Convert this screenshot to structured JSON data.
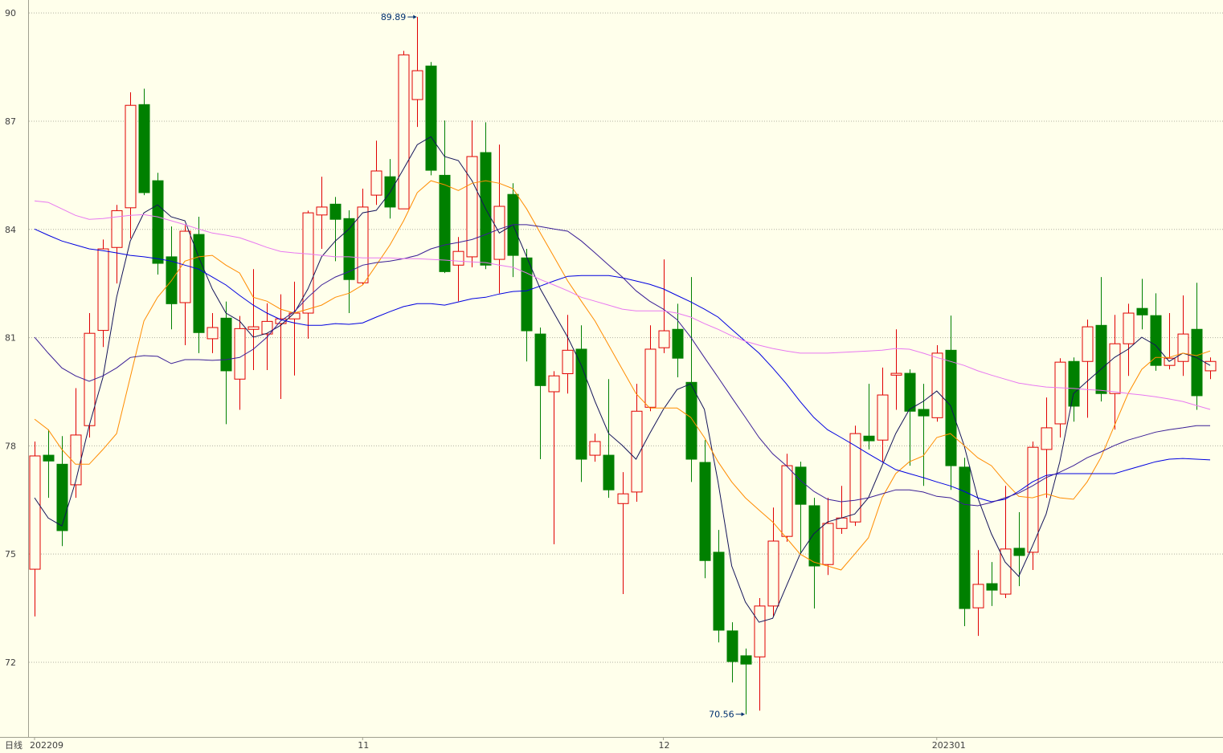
{
  "chart_data": {
    "type": "candlestick",
    "period": "日线",
    "categories": [
      "202209",
      null,
      null,
      null,
      null,
      null,
      null,
      null,
      null,
      null,
      null,
      null,
      null,
      null,
      null,
      null,
      null,
      null,
      null,
      null,
      null,
      null,
      null,
      null,
      "11",
      null,
      null,
      null,
      null,
      null,
      null,
      null,
      null,
      null,
      null,
      null,
      null,
      null,
      null,
      null,
      null,
      null,
      null,
      null,
      null,
      null,
      "12",
      null,
      null,
      null,
      null,
      null,
      null,
      null,
      null,
      null,
      null,
      null,
      null,
      null,
      null,
      null,
      null,
      null,
      null,
      null,
      "202301",
      null,
      null,
      null,
      null,
      null,
      null,
      null,
      null,
      null,
      null,
      null,
      null,
      null,
      null,
      null,
      null,
      null,
      null,
      null,
      null
    ],
    "open": [
      74.58,
      77.74,
      77.49,
      76.92,
      78.56,
      81.2,
      83.5,
      84.6,
      87.46,
      85.35,
      83.24,
      81.97,
      83.86,
      80.97,
      81.54,
      79.85,
      81.23,
      81.1,
      81.39,
      81.52,
      81.68,
      84.4,
      84.7,
      84.3,
      82.52,
      84.95,
      85.46,
      84.57,
      87.6,
      88.53,
      85.5,
      83.01,
      83.24,
      86.13,
      83.17,
      84.97,
      83.21,
      81.1,
      79.5,
      80.0,
      80.68,
      77.74,
      77.74,
      76.4,
      76.72,
      79.07,
      80.72,
      81.23,
      79.76,
      77.54,
      75.05,
      72.87,
      72.18,
      72.15,
      73.56,
      75.49,
      77.41,
      76.34,
      74.71,
      75.71,
      75.89,
      78.27,
      78.16,
      79.96,
      80.01,
      79.01,
      78.78,
      80.65,
      77.41,
      73.51,
      74.18,
      73.89,
      75.16,
      75.05,
      77.9,
      78.61,
      80.34,
      80.34,
      81.34,
      79.45,
      80.83,
      81.81,
      81.61,
      80.23,
      80.34,
      81.23,
      80.08
    ],
    "high": [
      78.12,
      78.45,
      78.27,
      79.6,
      81.68,
      83.72,
      84.68,
      87.8,
      87.9,
      85.57,
      84.08,
      84.13,
      84.35,
      81.68,
      82.0,
      81.6,
      82.9,
      81.95,
      82.2,
      82.55,
      84.52,
      85.46,
      84.9,
      84.53,
      85.13,
      86.46,
      85.95,
      88.95,
      89.89,
      88.64,
      87.02,
      83.79,
      87.02,
      86.97,
      86.35,
      85.28,
      83.46,
      81.28,
      80.07,
      81.63,
      81.34,
      78.34,
      79.85,
      77.27,
      79.72,
      81.34,
      83.17,
      81.94,
      82.68,
      78.16,
      75.67,
      73.11,
      72.38,
      73.78,
      76.29,
      77.78,
      77.56,
      76.56,
      76.56,
      76.89,
      78.56,
      79.72,
      80.17,
      81.23,
      80.12,
      79.72,
      80.79,
      81.61,
      77.67,
      75.11,
      74.78,
      76.89,
      76.16,
      78.12,
      79.34,
      80.43,
      80.45,
      81.5,
      82.68,
      81.63,
      81.94,
      82.63,
      82.23,
      81.68,
      82.17,
      82.52,
      80.45
    ],
    "low": [
      73.27,
      76.56,
      75.22,
      76.56,
      78.23,
      80.74,
      82.5,
      83.75,
      84.95,
      82.75,
      81.23,
      80.79,
      80.57,
      80.57,
      78.6,
      79.0,
      80.1,
      80.1,
      79.3,
      79.95,
      80.97,
      83.46,
      83.12,
      81.68,
      82.46,
      84.68,
      84.3,
      84.57,
      86.84,
      85.5,
      82.79,
      82.01,
      82.95,
      82.9,
      82.23,
      82.68,
      80.34,
      77.63,
      75.27,
      79.45,
      77.0,
      77.56,
      76.56,
      73.89,
      76.45,
      78.96,
      80.57,
      79.9,
      77.0,
      74.33,
      72.55,
      71.44,
      70.56,
      70.66,
      73.27,
      75.34,
      75.0,
      73.49,
      74.42,
      75.56,
      75.78,
      77.9,
      77.56,
      79.0,
      77.45,
      76.89,
      78.67,
      76.78,
      73.0,
      72.73,
      73.56,
      73.78,
      74.11,
      74.56,
      76.56,
      78.23,
      78.67,
      78.78,
      79.23,
      78.45,
      79.94,
      81.23,
      80.08,
      80.12,
      79.94,
      79.0,
      79.85
    ],
    "close": [
      77.72,
      77.58,
      75.65,
      78.3,
      81.12,
      83.46,
      84.52,
      87.44,
      85.02,
      83.06,
      81.94,
      83.95,
      81.14,
      81.28,
      80.08,
      81.25,
      81.3,
      81.45,
      81.52,
      81.68,
      84.46,
      84.62,
      84.28,
      82.61,
      84.62,
      85.62,
      84.62,
      88.84,
      88.4,
      85.64,
      82.83,
      83.39,
      86.02,
      83.01,
      84.64,
      83.28,
      81.19,
      79.67,
      79.94,
      80.65,
      77.63,
      78.12,
      76.78,
      76.67,
      78.96,
      80.68,
      81.19,
      80.43,
      77.63,
      74.82,
      72.89,
      72.02,
      71.95,
      73.56,
      75.36,
      77.45,
      76.38,
      74.67,
      75.85,
      76.0,
      78.34,
      78.14,
      79.41,
      80.01,
      78.96,
      78.83,
      80.57,
      77.45,
      73.49,
      74.16,
      74.0,
      75.14,
      74.96,
      77.96,
      78.5,
      80.32,
      79.1,
      81.3,
      79.45,
      80.83,
      81.68,
      81.63,
      80.23,
      80.43,
      81.1,
      79.39,
      80.34
    ],
    "up_color": "#e00000",
    "down_color": "#008000",
    "series": [
      {
        "color": "#14145a",
        "values": [
          76.56,
          76.0,
          75.78,
          77.0,
          78.56,
          79.9,
          82.12,
          83.68,
          84.46,
          84.68,
          84.35,
          84.24,
          83.24,
          82.35,
          81.68,
          81.46,
          81.01,
          81.12,
          81.34,
          81.68,
          82.35,
          83.24,
          83.68,
          84.01,
          84.46,
          84.53,
          85.02,
          85.68,
          86.35,
          86.57,
          86.02,
          85.91,
          85.35,
          84.57,
          83.9,
          84.13,
          83.24,
          82.35,
          81.68,
          81.01,
          80.23,
          79.23,
          78.34,
          78.01,
          77.63,
          78.34,
          79.01,
          79.56,
          79.72,
          79.01,
          77.0,
          74.67,
          73.67,
          73.11,
          73.22,
          74.11,
          75.0,
          75.56,
          75.89,
          76.0,
          76.11,
          76.56,
          77.45,
          78.34,
          79.01,
          79.23,
          79.52,
          79.12,
          78.01,
          76.56,
          75.56,
          74.78,
          74.38,
          75.22,
          76.11,
          77.56,
          79.45,
          79.79,
          80.12,
          80.45,
          80.68,
          81.01,
          80.79,
          80.34,
          80.57,
          80.45,
          80.23
        ]
      },
      {
        "color": "#ff8c00",
        "values": [
          78.74,
          78.45,
          77.9,
          77.49,
          77.49,
          77.9,
          78.34,
          79.9,
          81.46,
          82.12,
          82.57,
          83.12,
          83.24,
          83.28,
          83.01,
          82.79,
          82.12,
          82.01,
          81.79,
          81.68,
          81.79,
          81.9,
          82.12,
          82.23,
          82.46,
          83.01,
          83.57,
          84.24,
          85.02,
          85.35,
          85.24,
          85.08,
          85.28,
          85.35,
          85.28,
          85.13,
          84.57,
          83.9,
          83.24,
          82.57,
          82.01,
          81.46,
          80.79,
          80.12,
          79.45,
          79.05,
          79.05,
          79.05,
          78.79,
          78.23,
          77.56,
          77.0,
          76.56,
          76.22,
          75.89,
          75.45,
          75.0,
          74.78,
          74.67,
          74.56,
          75.0,
          75.45,
          76.56,
          77.23,
          77.56,
          77.72,
          78.23,
          78.34,
          78.01,
          77.67,
          77.45,
          77.0,
          76.6,
          76.56,
          76.67,
          76.56,
          76.52,
          77.0,
          77.67,
          78.56,
          79.45,
          80.12,
          80.45,
          80.45,
          80.57,
          80.5,
          80.63
        ]
      },
      {
        "color": "#0000e0",
        "values": [
          84.01,
          83.84,
          83.68,
          83.57,
          83.46,
          83.41,
          83.35,
          83.28,
          83.24,
          83.19,
          83.12,
          83.01,
          82.9,
          82.68,
          82.46,
          82.17,
          81.9,
          81.68,
          81.5,
          81.41,
          81.34,
          81.34,
          81.39,
          81.37,
          81.41,
          81.57,
          81.72,
          81.86,
          81.94,
          81.94,
          81.9,
          81.99,
          82.08,
          82.12,
          82.21,
          82.28,
          82.3,
          82.43,
          82.57,
          82.7,
          82.72,
          82.72,
          82.72,
          82.66,
          82.57,
          82.48,
          82.35,
          82.17,
          81.99,
          81.79,
          81.57,
          81.23,
          80.9,
          80.57,
          80.16,
          79.72,
          79.23,
          78.79,
          78.45,
          78.23,
          78.01,
          77.78,
          77.56,
          77.34,
          77.23,
          77.12,
          77.0,
          76.89,
          76.74,
          76.56,
          76.45,
          76.52,
          76.74,
          77.0,
          77.18,
          77.23,
          77.23,
          77.23,
          77.23,
          77.23,
          77.34,
          77.45,
          77.56,
          77.63,
          77.65,
          77.63,
          77.61
        ]
      },
      {
        "color": "#3a1e96",
        "values": [
          81.01,
          80.57,
          80.16,
          79.94,
          79.79,
          79.94,
          80.16,
          80.45,
          80.5,
          80.48,
          80.28,
          80.39,
          80.39,
          80.37,
          80.39,
          80.45,
          80.68,
          81.01,
          81.46,
          81.72,
          82.12,
          82.46,
          82.68,
          82.83,
          83.01,
          83.08,
          83.12,
          83.19,
          83.28,
          83.46,
          83.57,
          83.64,
          83.72,
          83.86,
          84.01,
          84.13,
          84.13,
          84.08,
          84.01,
          83.95,
          83.68,
          83.35,
          83.01,
          82.68,
          82.3,
          82.01,
          81.79,
          81.5,
          81.01,
          80.45,
          79.9,
          79.34,
          78.79,
          78.23,
          77.78,
          77.45,
          77.05,
          76.74,
          76.52,
          76.45,
          76.49,
          76.56,
          76.67,
          76.78,
          76.78,
          76.72,
          76.6,
          76.56,
          76.38,
          76.34,
          76.43,
          76.56,
          76.69,
          76.89,
          77.12,
          77.27,
          77.45,
          77.67,
          77.83,
          78.01,
          78.16,
          78.27,
          78.38,
          78.45,
          78.5,
          78.56,
          78.56
        ]
      },
      {
        "color": "#e878f0",
        "values": [
          84.79,
          84.75,
          84.57,
          84.39,
          84.28,
          84.3,
          84.35,
          84.39,
          84.41,
          84.35,
          84.24,
          84.13,
          84.01,
          83.9,
          83.84,
          83.77,
          83.64,
          83.5,
          83.39,
          83.35,
          83.32,
          83.28,
          83.24,
          83.24,
          83.21,
          83.21,
          83.21,
          83.19,
          83.19,
          83.17,
          83.15,
          83.12,
          83.1,
          83.08,
          83.01,
          82.95,
          82.79,
          82.61,
          82.46,
          82.3,
          82.12,
          82.01,
          81.9,
          81.79,
          81.74,
          81.74,
          81.74,
          81.68,
          81.57,
          81.39,
          81.23,
          81.05,
          80.9,
          80.79,
          80.7,
          80.63,
          80.57,
          80.57,
          80.57,
          80.59,
          80.61,
          80.63,
          80.65,
          80.7,
          80.68,
          80.57,
          80.45,
          80.34,
          80.23,
          80.08,
          79.96,
          79.85,
          79.74,
          79.68,
          79.63,
          79.61,
          79.59,
          79.56,
          79.54,
          79.5,
          79.45,
          79.41,
          79.36,
          79.3,
          79.23,
          79.12,
          79.01
        ]
      }
    ],
    "ylim": [
      69.93,
      90.36
    ],
    "yticks": [
      72,
      75,
      78,
      81,
      84,
      87,
      90
    ],
    "grid": true
  }
}
